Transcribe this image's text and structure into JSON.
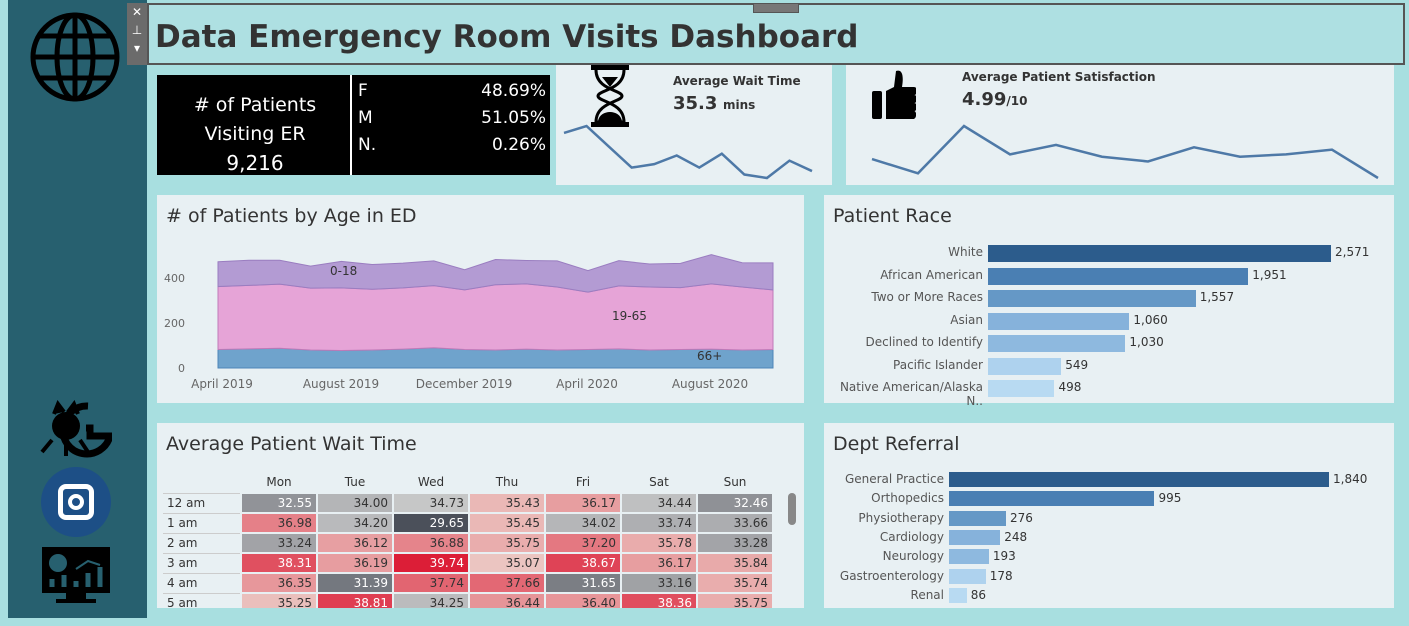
{
  "title": "Data Emergency Room Visits Dashboard",
  "sidebar": {
    "icons": [
      "globe-icon",
      "github-icon",
      "instagram-icon",
      "analytics-dashboard-icon"
    ]
  },
  "kpi": {
    "label_line1": "# of Patients",
    "label_line2": "Visiting ER",
    "total": "9,216",
    "genders": [
      {
        "label": "F",
        "value": "48.69%"
      },
      {
        "label": "M",
        "value": "51.05%"
      },
      {
        "label": "N.",
        "value": "0.26%"
      }
    ]
  },
  "wait": {
    "title": "Average Wait Time",
    "value": "35.3",
    "unit": "mins",
    "trend": [
      36.2,
      36.6,
      35.4,
      34.2,
      34.4,
      34.9,
      34.2,
      35.0,
      33.8,
      33.6,
      34.6,
      34.0
    ]
  },
  "satisfaction": {
    "title": "Average Patient Satisfaction",
    "value": "4.99",
    "unit": "/10",
    "trend": [
      4.9,
      4.6,
      5.6,
      5.0,
      5.2,
      4.95,
      4.85,
      5.15,
      4.95,
      5.0,
      5.1,
      4.5
    ]
  },
  "age": {
    "title": "# of Patients by Age in ED",
    "chart_data": {
      "type": "area",
      "stacked": true,
      "yticks": [
        0,
        200,
        400
      ],
      "xticks": [
        "April 2019",
        "August 2019",
        "December 2019",
        "April 2020",
        "August 2020"
      ],
      "x": [
        "2019-03",
        "2019-04",
        "2019-05",
        "2019-06",
        "2019-07",
        "2019-08",
        "2019-09",
        "2019-10",
        "2019-11",
        "2019-12",
        "2020-01",
        "2020-02",
        "2020-03",
        "2020-04",
        "2020-05",
        "2020-06",
        "2020-07",
        "2020-08",
        "2020-09"
      ],
      "series": [
        {
          "name": "66+",
          "color": "#6fa3cc",
          "values": [
            82,
            85,
            88,
            80,
            78,
            80,
            84,
            90,
            82,
            80,
            84,
            80,
            82,
            85,
            80,
            82,
            84,
            80,
            82
          ]
        },
        {
          "name": "19-65",
          "color": "#e6a4d7",
          "values": [
            280,
            282,
            285,
            275,
            278,
            270,
            272,
            276,
            265,
            290,
            290,
            280,
            255,
            280,
            280,
            275,
            290,
            280,
            265
          ]
        },
        {
          "name": "0-18",
          "color": "#b39bd3",
          "values": [
            110,
            112,
            106,
            98,
            118,
            110,
            110,
            110,
            90,
            112,
            104,
            116,
            96,
            112,
            102,
            108,
            130,
            108,
            120
          ]
        }
      ]
    }
  },
  "race": {
    "title": "Patient Race",
    "chart_data": {
      "type": "bar",
      "orientation": "horizontal",
      "categories": [
        "White",
        "African American",
        "Two or More Races",
        "Asian",
        "Declined to Identify",
        "Pacific Islander",
        "Native American/Alaska N.."
      ],
      "values": [
        2571,
        1951,
        1557,
        1060,
        1030,
        549,
        498
      ],
      "labels": [
        "2,571",
        "1,951",
        "1,557",
        "1,060",
        "1,030",
        "549",
        "498"
      ]
    }
  },
  "dept": {
    "title": "Dept Referral",
    "chart_data": {
      "type": "bar",
      "orientation": "horizontal",
      "categories": [
        "General Practice",
        "Orthopedics",
        "Physiotherapy",
        "Cardiology",
        "Neurology",
        "Gastroenterology",
        "Renal"
      ],
      "values": [
        1840,
        995,
        276,
        248,
        193,
        178,
        86
      ],
      "labels": [
        "1,840",
        "995",
        "276",
        "248",
        "193",
        "178",
        "86"
      ]
    }
  },
  "heatmap": {
    "title": "Average Patient Wait Time",
    "chart_data": {
      "type": "heatmap",
      "columns": [
        "Mon",
        "Tue",
        "Wed",
        "Thu",
        "Fri",
        "Sat",
        "Sun"
      ],
      "rows": [
        "12 am",
        "1 am",
        "2 am",
        "3 am",
        "4 am",
        "5 am"
      ],
      "values": [
        [
          32.55,
          34.0,
          34.73,
          35.43,
          36.17,
          34.44,
          32.46
        ],
        [
          36.98,
          34.2,
          29.65,
          35.45,
          34.02,
          33.74,
          33.66
        ],
        [
          33.24,
          36.12,
          36.88,
          35.75,
          37.2,
          35.78,
          33.28
        ],
        [
          38.31,
          36.19,
          39.74,
          35.07,
          38.67,
          36.17,
          35.84
        ],
        [
          36.35,
          31.39,
          37.74,
          37.66,
          31.65,
          33.16,
          35.74
        ],
        [
          35.25,
          38.81,
          34.25,
          36.44,
          36.4,
          38.36,
          35.75
        ]
      ]
    }
  }
}
